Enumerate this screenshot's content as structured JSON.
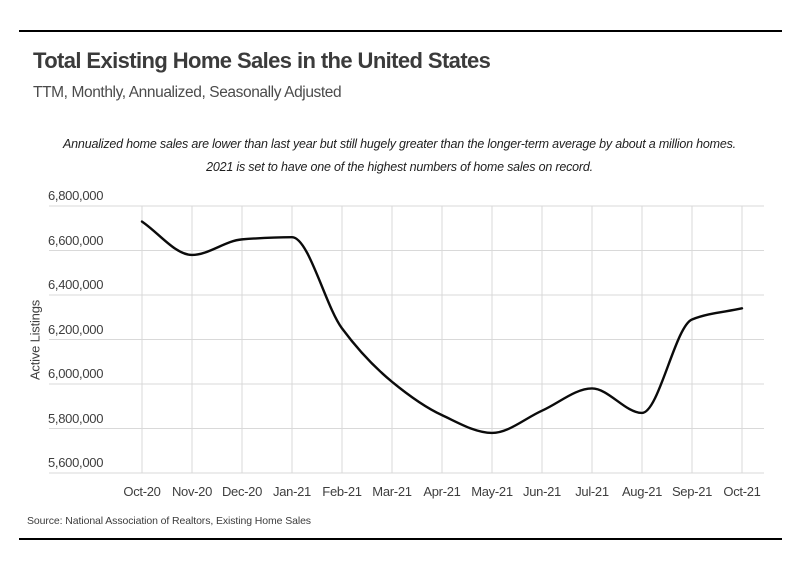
{
  "header": {
    "title": "Total Existing Home Sales in the United States",
    "subtitle": "TTM, Monthly, Annualized, Seasonally Adjusted",
    "annotation": "Annualized home sales are lower than last year but still hugely greater than the longer-term average by about a million homes. 2021 is set to have one of the highest numbers of home sales on record."
  },
  "footer": {
    "source": "Source:  National Association of Realtors, Existing Home Sales"
  },
  "chart_data": {
    "type": "line",
    "title": "Total Existing Home Sales in the United States",
    "subtitle": "TTM, Monthly, Annualized, Seasonally Adjusted",
    "xlabel": "",
    "ylabel": "Active Listings",
    "categories": [
      "Oct-20",
      "Nov-20",
      "Dec-20",
      "Jan-21",
      "Feb-21",
      "Mar-21",
      "Apr-21",
      "May-21",
      "Jun-21",
      "Jul-21",
      "Aug-21",
      "Sep-21",
      "Oct-21"
    ],
    "values": [
      6730000,
      6580000,
      6650000,
      6660000,
      6250000,
      6010000,
      5860000,
      5780000,
      5880000,
      5980000,
      5870000,
      6290000,
      6340000
    ],
    "ylim": [
      5600000,
      6800000
    ],
    "ytick_step": 200000,
    "ytick_labels": [
      "5,600,000",
      "5,800,000",
      "6,000,000",
      "6,200,000",
      "6,400,000",
      "6,600,000",
      "6,800,000"
    ],
    "grid": true,
    "legend": "none",
    "smoothing": "monotone",
    "line_color": "#0b0b0b",
    "grid_color": "#d9d9d9"
  }
}
